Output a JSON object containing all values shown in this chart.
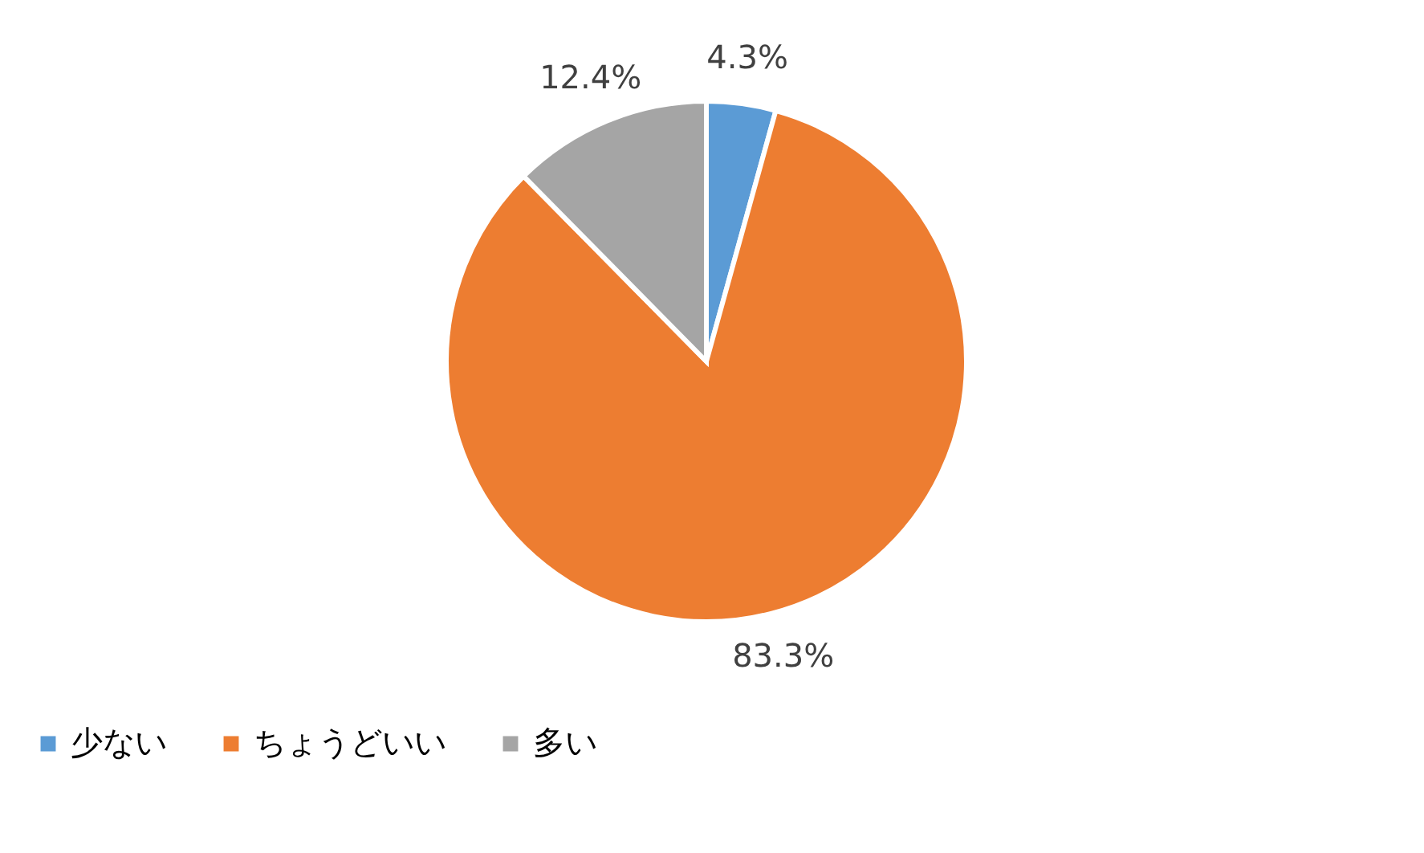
{
  "chart_data": {
    "type": "pie",
    "categories": [
      "少ない",
      "ちょうどいい",
      "多い"
    ],
    "values": [
      4.3,
      83.3,
      12.4
    ],
    "colors": [
      "#5b9bd5",
      "#ed7d31",
      "#a5a5a5"
    ],
    "value_labels": [
      "4.3%",
      "83.3%",
      "12.4%"
    ],
    "legend": "bottom"
  }
}
